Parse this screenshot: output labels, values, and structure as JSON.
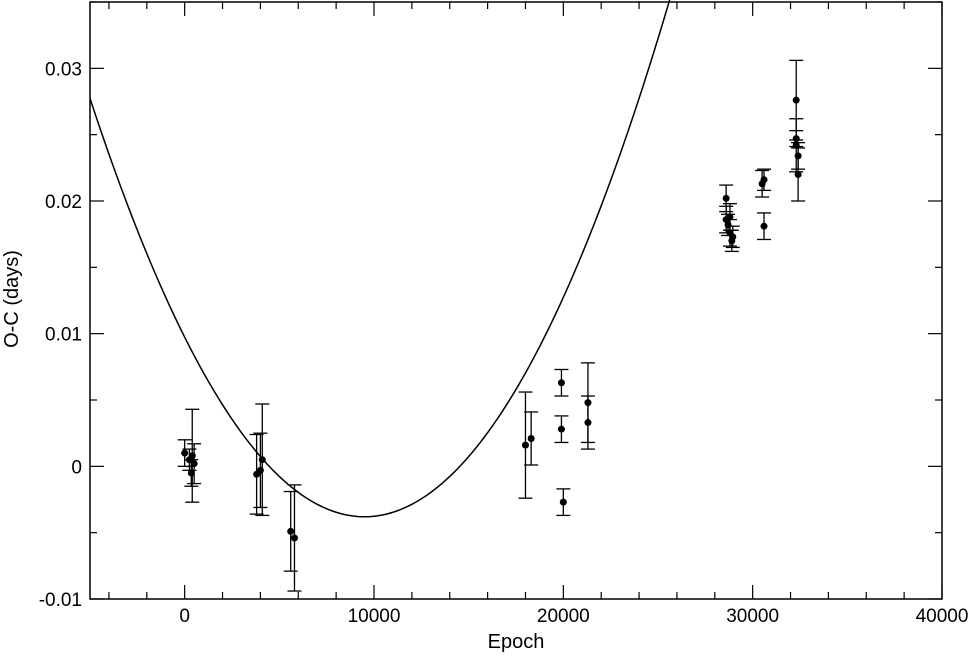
{
  "chart_data": {
    "type": "scatter",
    "xlabel": "Epoch",
    "ylabel": "O-C (days)",
    "xlim": [
      -5000,
      40000
    ],
    "ylim": [
      -0.01,
      0.035
    ],
    "x_ticks": [
      0,
      10000,
      20000,
      30000,
      40000
    ],
    "x_tick_labels": [
      "0",
      "10000",
      "20000",
      "30000",
      "40000"
    ],
    "y_ticks": [
      -0.01,
      0,
      0.01,
      0.02,
      0.03
    ],
    "y_tick_labels": [
      "-0.01",
      "0",
      "0.01",
      "0.02",
      "0.03"
    ],
    "x_minor_step": 2000,
    "y_minor_step": 0.005,
    "grid": false,
    "legend": "none",
    "colors": {
      "points": "#000000",
      "fit": "#000000",
      "axes": "#000000"
    },
    "series": [
      {
        "kind": "points_with_errorbars",
        "points": [
          {
            "x": 0,
            "y": 0.001,
            "err": 0.001
          },
          {
            "x": 250,
            "y": 0.0005,
            "err": 0.0008
          },
          {
            "x": 350,
            "y": -0.0005,
            "err": 0.001
          },
          {
            "x": 400,
            "y": 0.0008,
            "err": 0.0035
          },
          {
            "x": 500,
            "y": 0.0002,
            "err": 0.0015
          },
          {
            "x": 3800,
            "y": -0.0006,
            "err": 0.003
          },
          {
            "x": 4000,
            "y": -0.0003,
            "err": 0.0028
          },
          {
            "x": 4100,
            "y": 0.0005,
            "err": 0.0042
          },
          {
            "x": 5600,
            "y": -0.0049,
            "err": 0.003
          },
          {
            "x": 5800,
            "y": -0.0054,
            "err": 0.004
          },
          {
            "x": 18000,
            "y": 0.0016,
            "err": 0.004
          },
          {
            "x": 18300,
            "y": 0.0021,
            "err": 0.002
          },
          {
            "x": 19900,
            "y": 0.0063,
            "err": 0.001
          },
          {
            "x": 19900,
            "y": 0.0028,
            "err": 0.001
          },
          {
            "x": 20000,
            "y": -0.0027,
            "err": 0.001
          },
          {
            "x": 21300,
            "y": 0.0048,
            "err": 0.003
          },
          {
            "x": 21300,
            "y": 0.0033,
            "err": 0.002
          },
          {
            "x": 28600,
            "y": 0.0202,
            "err": 0.001
          },
          {
            "x": 28600,
            "y": 0.0186,
            "err": 0.001
          },
          {
            "x": 28700,
            "y": 0.0182,
            "err": 0.0008
          },
          {
            "x": 28800,
            "y": 0.0188,
            "err": 0.001
          },
          {
            "x": 28800,
            "y": 0.0176,
            "err": 0.001
          },
          {
            "x": 28900,
            "y": 0.017,
            "err": 0.0008
          },
          {
            "x": 28950,
            "y": 0.0173,
            "err": 0.0008
          },
          {
            "x": 30500,
            "y": 0.0213,
            "err": 0.001
          },
          {
            "x": 30600,
            "y": 0.0216,
            "err": 0.0008
          },
          {
            "x": 30600,
            "y": 0.0181,
            "err": 0.001
          },
          {
            "x": 32300,
            "y": 0.0276,
            "err": 0.003
          },
          {
            "x": 32300,
            "y": 0.0247,
            "err": 0.0006
          },
          {
            "x": 32300,
            "y": 0.0242,
            "err": 0.002
          },
          {
            "x": 32400,
            "y": 0.0234,
            "err": 0.001
          },
          {
            "x": 32400,
            "y": 0.022,
            "err": 0.002
          }
        ]
      },
      {
        "kind": "quadratic_fit",
        "x_range": [
          -5000,
          35000
        ],
        "coefficients": {
          "x0": 9500,
          "y_min": -0.0038,
          "a": 1.5e-10
        }
      }
    ]
  }
}
